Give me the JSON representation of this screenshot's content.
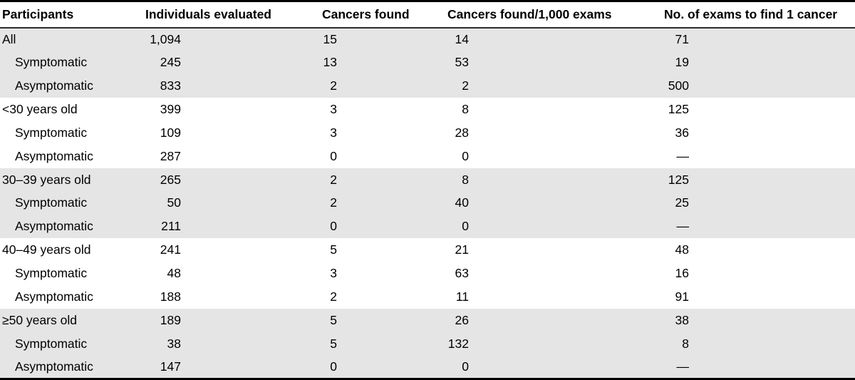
{
  "table": {
    "columns": [
      "Participants",
      "Individuals evaluated",
      "Cancers found",
      "Cancers found/1,000 exams",
      "No. of exams to find 1 cancer"
    ],
    "rows": [
      {
        "label": "All",
        "indent": false,
        "values": [
          "1,094",
          "15",
          "14",
          "71"
        ]
      },
      {
        "label": "Symptomatic",
        "indent": true,
        "values": [
          "245",
          "13",
          "53",
          "19"
        ]
      },
      {
        "label": "Asymptomatic",
        "indent": true,
        "values": [
          "833",
          "2",
          "2",
          "500"
        ]
      },
      {
        "label": "<30 years old",
        "indent": false,
        "values": [
          "399",
          "3",
          "8",
          "125"
        ]
      },
      {
        "label": "Symptomatic",
        "indent": true,
        "values": [
          "109",
          "3",
          "28",
          "36"
        ]
      },
      {
        "label": "Asymptomatic",
        "indent": true,
        "values": [
          "287",
          "0",
          "0",
          "—"
        ]
      },
      {
        "label": "30–39 years old",
        "indent": false,
        "values": [
          "265",
          "2",
          "8",
          "125"
        ]
      },
      {
        "label": "Symptomatic",
        "indent": true,
        "values": [
          "50",
          "2",
          "40",
          "25"
        ]
      },
      {
        "label": "Asymptomatic",
        "indent": true,
        "values": [
          "211",
          "0",
          "0",
          "—"
        ]
      },
      {
        "label": "40–49 years old",
        "indent": false,
        "values": [
          "241",
          "5",
          "21",
          "48"
        ]
      },
      {
        "label": "Symptomatic",
        "indent": true,
        "values": [
          "48",
          "3",
          "63",
          "16"
        ]
      },
      {
        "label": "Asymptomatic",
        "indent": true,
        "values": [
          "188",
          "2",
          "11",
          "91"
        ]
      },
      {
        "label": "≥50 years old",
        "indent": false,
        "values": [
          "189",
          "5",
          "26",
          "38"
        ]
      },
      {
        "label": "Symptomatic",
        "indent": true,
        "values": [
          "38",
          "5",
          "132",
          "8"
        ]
      },
      {
        "label": "Asymptomatic",
        "indent": true,
        "values": [
          "147",
          "0",
          "0",
          "—"
        ]
      }
    ],
    "group_size": 3,
    "colors": {
      "band_gray": "#e5e5e5",
      "band_white": "#ffffff",
      "rule_outer": "#000000",
      "rule_header": "#2e2e2e",
      "text": "#000000"
    }
  },
  "chart_data": {
    "type": "table",
    "title": "",
    "columns": [
      "Participants",
      "Individuals evaluated",
      "Cancers found",
      "Cancers found/1,000 exams",
      "No. of exams to find 1 cancer"
    ],
    "rows": [
      [
        "All",
        1094,
        15,
        14,
        71
      ],
      [
        "Symptomatic",
        245,
        13,
        53,
        19
      ],
      [
        "Asymptomatic",
        833,
        2,
        2,
        500
      ],
      [
        "<30 years old",
        399,
        3,
        8,
        125
      ],
      [
        "Symptomatic",
        109,
        3,
        28,
        36
      ],
      [
        "Asymptomatic",
        287,
        0,
        0,
        null
      ],
      [
        "30–39 years old",
        265,
        2,
        8,
        125
      ],
      [
        "Symptomatic",
        50,
        2,
        40,
        25
      ],
      [
        "Asymptomatic",
        211,
        0,
        0,
        null
      ],
      [
        "40–49 years old",
        241,
        5,
        21,
        48
      ],
      [
        "Symptomatic",
        48,
        3,
        63,
        16
      ],
      [
        "Asymptomatic",
        188,
        2,
        11,
        91
      ],
      [
        "≥50 years old",
        189,
        5,
        26,
        38
      ],
      [
        "Symptomatic",
        38,
        5,
        132,
        8
      ],
      [
        "Asymptomatic",
        147,
        0,
        0,
        null
      ]
    ],
    "missing_value_marker": "—"
  }
}
